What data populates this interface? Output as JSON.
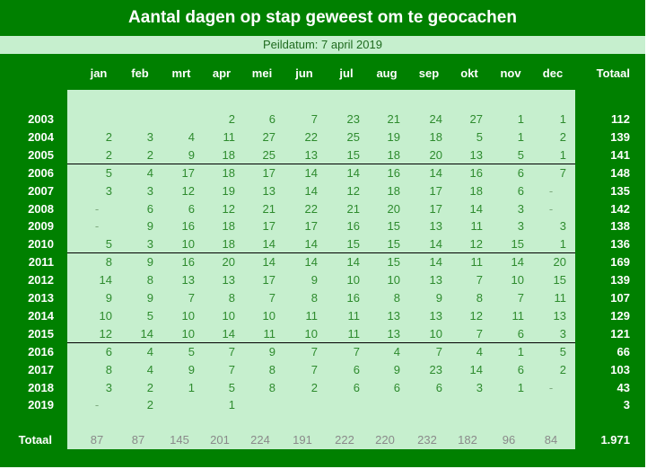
{
  "title": "Aantal dagen op stap geweest om te geocachen",
  "subtitle": "Peildatum: 7 april 2019",
  "colors": {
    "dark_green": "#008000",
    "light_green": "#c6efce",
    "value_text": "#2e8b2e",
    "total_text": "#ffffff"
  },
  "columns": [
    "jan",
    "feb",
    "mrt",
    "apr",
    "mei",
    "jun",
    "jul",
    "aug",
    "sep",
    "okt",
    "nov",
    "dec"
  ],
  "total_label": "Totaal",
  "rows": [
    {
      "year": "2003",
      "values": [
        "",
        "",
        "",
        "2",
        "6",
        "7",
        "23",
        "21",
        "24",
        "27",
        "1",
        "1"
      ],
      "total": "112"
    },
    {
      "year": "2004",
      "values": [
        "2",
        "3",
        "4",
        "11",
        "27",
        "22",
        "25",
        "19",
        "18",
        "5",
        "1",
        "2"
      ],
      "total": "139"
    },
    {
      "year": "2005",
      "values": [
        "2",
        "2",
        "9",
        "18",
        "25",
        "13",
        "15",
        "18",
        "20",
        "13",
        "5",
        "1"
      ],
      "total": "141"
    },
    {
      "year": "2006",
      "values": [
        "5",
        "4",
        "17",
        "18",
        "17",
        "14",
        "14",
        "16",
        "14",
        "16",
        "6",
        "7"
      ],
      "total": "148"
    },
    {
      "year": "2007",
      "values": [
        "3",
        "3",
        "12",
        "19",
        "13",
        "14",
        "12",
        "18",
        "17",
        "18",
        "6",
        "-"
      ],
      "total": "135"
    },
    {
      "year": "2008",
      "values": [
        "-",
        "6",
        "6",
        "12",
        "21",
        "22",
        "21",
        "20",
        "17",
        "14",
        "3",
        "-"
      ],
      "total": "142"
    },
    {
      "year": "2009",
      "values": [
        "-",
        "9",
        "16",
        "18",
        "17",
        "17",
        "16",
        "15",
        "13",
        "11",
        "3",
        "3"
      ],
      "total": "138"
    },
    {
      "year": "2010",
      "values": [
        "5",
        "3",
        "10",
        "18",
        "14",
        "14",
        "15",
        "15",
        "14",
        "12",
        "15",
        "1"
      ],
      "total": "136"
    },
    {
      "year": "2011",
      "values": [
        "8",
        "9",
        "16",
        "20",
        "14",
        "14",
        "14",
        "15",
        "14",
        "11",
        "14",
        "20"
      ],
      "total": "169"
    },
    {
      "year": "2012",
      "values": [
        "14",
        "8",
        "13",
        "13",
        "17",
        "9",
        "10",
        "10",
        "13",
        "7",
        "10",
        "15"
      ],
      "total": "139"
    },
    {
      "year": "2013",
      "values": [
        "9",
        "9",
        "7",
        "8",
        "7",
        "8",
        "16",
        "8",
        "9",
        "8",
        "7",
        "11"
      ],
      "total": "107"
    },
    {
      "year": "2014",
      "values": [
        "10",
        "5",
        "10",
        "10",
        "10",
        "11",
        "11",
        "13",
        "13",
        "12",
        "11",
        "13"
      ],
      "total": "129"
    },
    {
      "year": "2015",
      "values": [
        "12",
        "14",
        "10",
        "14",
        "11",
        "10",
        "11",
        "13",
        "10",
        "7",
        "6",
        "3"
      ],
      "total": "121"
    },
    {
      "year": "2016",
      "values": [
        "6",
        "4",
        "5",
        "7",
        "9",
        "7",
        "7",
        "4",
        "7",
        "4",
        "1",
        "5"
      ],
      "total": "66"
    },
    {
      "year": "2017",
      "values": [
        "8",
        "4",
        "9",
        "7",
        "8",
        "7",
        "6",
        "9",
        "23",
        "14",
        "6",
        "2"
      ],
      "total": "103"
    },
    {
      "year": "2018",
      "values": [
        "3",
        "2",
        "1",
        "5",
        "8",
        "2",
        "6",
        "6",
        "6",
        "3",
        "1",
        "-"
      ],
      "total": "43"
    },
    {
      "year": "2019",
      "values": [
        "-",
        "2",
        "",
        "1",
        "",
        "",
        "",
        "",
        "",
        "",
        "",
        ""
      ],
      "total": "3"
    }
  ],
  "column_totals": [
    "87",
    "87",
    "145",
    "201",
    "224",
    "191",
    "222",
    "220",
    "232",
    "182",
    "96",
    "84"
  ],
  "grand_total": "1.971",
  "separators_after_years": [
    "2005",
    "2010",
    "2015"
  ]
}
